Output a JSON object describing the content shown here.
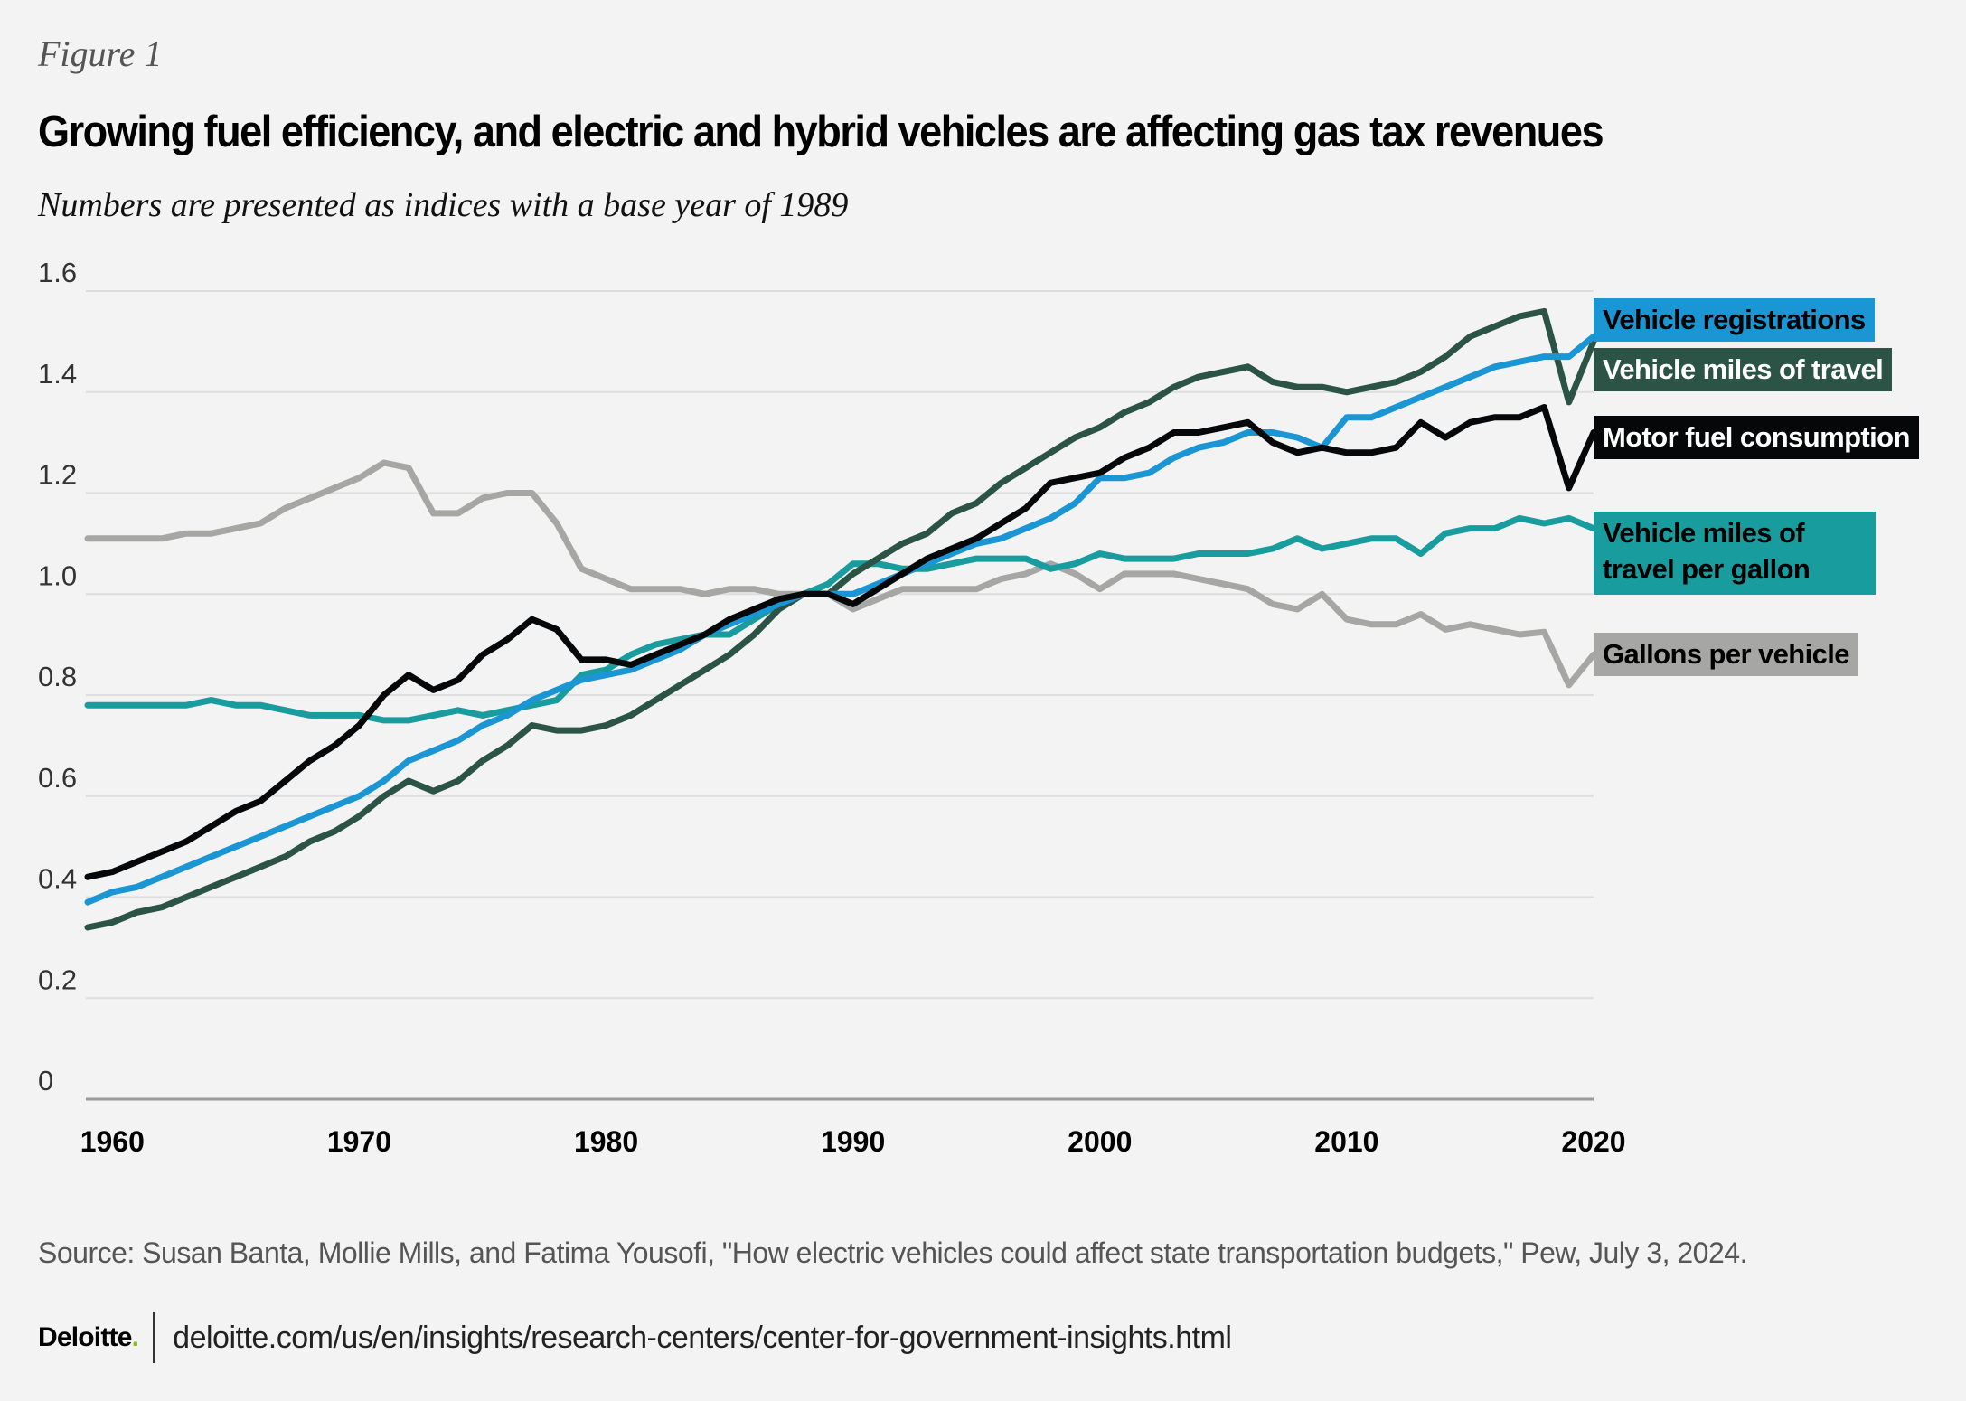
{
  "figure_label": "Figure 1",
  "title": "Growing fuel efficiency, and electric and hybrid vehicles are affecting gas tax revenues",
  "subtitle": "Numbers are presented as indices with a base year of 1989",
  "source": "Source: Susan Banta, Mollie Mills, and Fatima Yousofi, \"How electric vehicles could affect state transportation budgets,\" Pew, July 3, 2024.",
  "footer": {
    "logo": "Deloitte",
    "logo_dot": ".",
    "url": "deloitte.com/us/en/insights/research-centers/center-for-government-insights.html"
  },
  "chart_data": {
    "type": "line",
    "title": "Growing fuel efficiency, and electric and hybrid vehicles are affecting gas tax revenues",
    "subtitle": "Numbers are presented as indices with a base year of 1989",
    "xlabel": "",
    "ylabel": "",
    "xlim": [
      1959,
      2020
    ],
    "ylim": [
      0,
      1.6
    ],
    "yticks": [
      0,
      0.2,
      0.4,
      0.6,
      0.8,
      1.0,
      1.2,
      1.4,
      1.6
    ],
    "ytick_labels": [
      "0",
      "0.2",
      "0.4",
      "0.6",
      "0.8",
      "1.0",
      "1.2",
      "1.4",
      "1.6"
    ],
    "xticks": [
      1960,
      1970,
      1980,
      1990,
      2000,
      2010,
      2020
    ],
    "xtick_labels": [
      "1960",
      "1970",
      "1980",
      "1990",
      "2000",
      "2010",
      "2020"
    ],
    "grid": "horizontal",
    "legend": "right (direct labels)",
    "x": [
      1959,
      1960,
      1961,
      1962,
      1963,
      1964,
      1965,
      1966,
      1967,
      1968,
      1969,
      1970,
      1971,
      1972,
      1973,
      1974,
      1975,
      1976,
      1977,
      1978,
      1979,
      1980,
      1981,
      1982,
      1983,
      1984,
      1985,
      1986,
      1987,
      1988,
      1989,
      1990,
      1991,
      1992,
      1993,
      1994,
      1995,
      1996,
      1997,
      1998,
      1999,
      2000,
      2001,
      2002,
      2003,
      2004,
      2005,
      2006,
      2007,
      2008,
      2009,
      2010,
      2011,
      2012,
      2013,
      2014,
      2015,
      2016,
      2017,
      2018,
      2019,
      2020
    ],
    "series": [
      {
        "name": "Vehicle registrations",
        "color": "#1b96d4",
        "text_color": "#000000",
        "values": [
          0.39,
          0.41,
          0.42,
          0.44,
          0.46,
          0.48,
          0.5,
          0.52,
          0.54,
          0.56,
          0.58,
          0.6,
          0.63,
          0.67,
          0.69,
          0.71,
          0.74,
          0.76,
          0.79,
          0.81,
          0.83,
          0.84,
          0.85,
          0.87,
          0.89,
          0.92,
          0.94,
          0.96,
          0.98,
          1.0,
          1.0,
          1.0,
          1.02,
          1.04,
          1.06,
          1.08,
          1.1,
          1.11,
          1.13,
          1.15,
          1.18,
          1.23,
          1.23,
          1.24,
          1.27,
          1.29,
          1.3,
          1.32,
          1.32,
          1.31,
          1.29,
          1.35,
          1.35,
          1.37,
          1.39,
          1.41,
          1.43,
          1.45,
          1.46,
          1.47,
          1.47,
          1.51
        ]
      },
      {
        "name": "Vehicle miles of travel",
        "color": "#2c5446",
        "text_color": "#ffffff",
        "values": [
          0.34,
          0.35,
          0.37,
          0.38,
          0.4,
          0.42,
          0.44,
          0.46,
          0.48,
          0.51,
          0.53,
          0.56,
          0.6,
          0.63,
          0.61,
          0.63,
          0.67,
          0.7,
          0.74,
          0.73,
          0.73,
          0.74,
          0.76,
          0.79,
          0.82,
          0.85,
          0.88,
          0.92,
          0.97,
          1.0,
          1.0,
          1.04,
          1.07,
          1.1,
          1.12,
          1.16,
          1.18,
          1.22,
          1.25,
          1.28,
          1.31,
          1.33,
          1.36,
          1.38,
          1.41,
          1.43,
          1.44,
          1.45,
          1.42,
          1.41,
          1.41,
          1.4,
          1.41,
          1.42,
          1.44,
          1.47,
          1.51,
          1.53,
          1.55,
          1.56,
          1.38,
          1.5
        ]
      },
      {
        "name": "Motor fuel consumption",
        "color": "#050708",
        "text_color": "#ffffff",
        "values": [
          0.44,
          0.45,
          0.47,
          0.49,
          0.51,
          0.54,
          0.57,
          0.59,
          0.63,
          0.67,
          0.7,
          0.74,
          0.8,
          0.84,
          0.81,
          0.83,
          0.88,
          0.91,
          0.95,
          0.93,
          0.87,
          0.87,
          0.86,
          0.88,
          0.9,
          0.92,
          0.95,
          0.97,
          0.99,
          1.0,
          1.0,
          0.98,
          1.01,
          1.04,
          1.07,
          1.09,
          1.11,
          1.14,
          1.17,
          1.22,
          1.23,
          1.24,
          1.27,
          1.29,
          1.32,
          1.32,
          1.33,
          1.34,
          1.3,
          1.28,
          1.29,
          1.28,
          1.28,
          1.29,
          1.34,
          1.31,
          1.34,
          1.35,
          1.35,
          1.37,
          1.21,
          1.32
        ]
      },
      {
        "name": "Vehicle miles of travel per gallon",
        "color": "#189c9e",
        "text_color": "#000000",
        "values": [
          0.78,
          0.78,
          0.78,
          0.78,
          0.78,
          0.79,
          0.78,
          0.78,
          0.77,
          0.76,
          0.76,
          0.76,
          0.75,
          0.75,
          0.76,
          0.77,
          0.76,
          0.77,
          0.78,
          0.79,
          0.84,
          0.85,
          0.88,
          0.9,
          0.91,
          0.92,
          0.92,
          0.95,
          0.98,
          1.0,
          1.02,
          1.06,
          1.06,
          1.05,
          1.05,
          1.06,
          1.07,
          1.07,
          1.07,
          1.05,
          1.06,
          1.08,
          1.07,
          1.07,
          1.07,
          1.08,
          1.08,
          1.08,
          1.09,
          1.11,
          1.09,
          1.1,
          1.11,
          1.11,
          1.08,
          1.12,
          1.13,
          1.13,
          1.15,
          1.14,
          1.15,
          1.13
        ]
      },
      {
        "name": "Gallons per vehicle",
        "color": "#a6a6a5",
        "text_color": "#000000",
        "values": [
          1.11,
          1.11,
          1.11,
          1.11,
          1.12,
          1.12,
          1.13,
          1.14,
          1.17,
          1.19,
          1.21,
          1.23,
          1.26,
          1.25,
          1.16,
          1.16,
          1.19,
          1.2,
          1.2,
          1.14,
          1.05,
          1.03,
          1.01,
          1.01,
          1.01,
          1.0,
          1.01,
          1.01,
          1.0,
          1.0,
          1.0,
          0.97,
          0.99,
          1.01,
          1.01,
          1.01,
          1.01,
          1.03,
          1.04,
          1.06,
          1.04,
          1.01,
          1.04,
          1.04,
          1.04,
          1.03,
          1.02,
          1.01,
          0.98,
          0.97,
          1.0,
          0.95,
          0.94,
          0.94,
          0.96,
          0.93,
          0.94,
          0.93,
          0.92,
          0.925,
          0.82,
          0.88
        ]
      }
    ]
  }
}
